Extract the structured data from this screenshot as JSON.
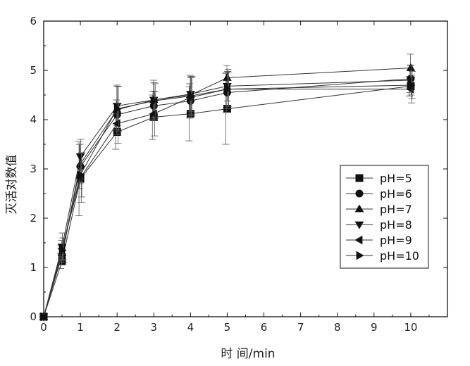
{
  "chart_data": {
    "type": "line",
    "title": "",
    "xlabel": "时 间/min",
    "ylabel": "灭活对数值",
    "xlim": [
      0,
      11
    ],
    "ylim": [
      0,
      6
    ],
    "xticks": [
      0,
      1,
      2,
      3,
      4,
      5,
      6,
      7,
      8,
      9,
      10
    ],
    "yticks": [
      0,
      1,
      2,
      3,
      4,
      5,
      6
    ],
    "grid": false,
    "legend_position": "right",
    "x": [
      0,
      0.5,
      1,
      2,
      3,
      4,
      5,
      10
    ],
    "series": [
      {
        "name": "pH=5",
        "marker": "square",
        "values": [
          0,
          1.13,
          2.8,
          3.75,
          4.05,
          4.12,
          4.22,
          4.68
        ],
        "errors": [
          0,
          0.15,
          0.75,
          0.35,
          0.45,
          0.55,
          0.72,
          0.2
        ]
      },
      {
        "name": "pH=6",
        "marker": "circle",
        "values": [
          0,
          1.25,
          3.05,
          4.1,
          4.28,
          4.38,
          4.55,
          4.83
        ],
        "errors": [
          0,
          0.2,
          0.45,
          0.3,
          0.3,
          0.35,
          0.4,
          0.28
        ]
      },
      {
        "name": "pH=7",
        "marker": "triangle-up",
        "values": [
          0,
          1.3,
          3.1,
          4.2,
          4.4,
          4.5,
          4.85,
          5.05
        ],
        "errors": [
          0,
          0.25,
          0.4,
          0.5,
          0.4,
          0.4,
          0.25,
          0.28
        ]
      },
      {
        "name": "pH=8",
        "marker": "triangle-down",
        "values": [
          0,
          1.42,
          3.25,
          4.28,
          4.4,
          4.52,
          4.68,
          4.8
        ],
        "errors": [
          0,
          0.28,
          0.35,
          0.4,
          0.35,
          0.35,
          0.3,
          0.3
        ]
      },
      {
        "name": "pH=9",
        "marker": "triangle-left",
        "values": [
          0,
          1.38,
          2.82,
          3.92,
          4.12,
          4.45,
          4.62,
          4.62
        ],
        "errors": [
          0,
          0.22,
          0.5,
          0.4,
          0.45,
          0.4,
          0.4,
          0.28
        ]
      },
      {
        "name": "pH=10",
        "marker": "triangle-right",
        "values": [
          0,
          1.35,
          2.88,
          4.22,
          4.38,
          4.48,
          4.62,
          4.7
        ],
        "errors": [
          0,
          0.25,
          0.45,
          0.45,
          0.35,
          0.4,
          0.35,
          0.28
        ]
      }
    ]
  }
}
